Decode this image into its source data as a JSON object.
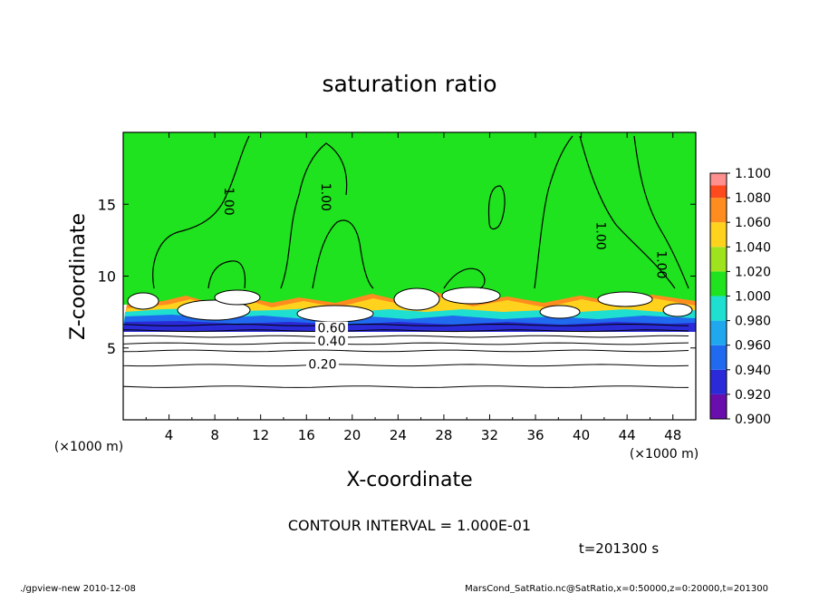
{
  "chart_data": {
    "type": "heatmap",
    "title": "saturation ratio",
    "xlabel": "X-coordinate",
    "ylabel": "Z-coordinate",
    "x_unit": "(×1000 m)",
    "y_unit": "(×1000 m)",
    "xlim": [
      0,
      50
    ],
    "ylim": [
      0,
      20
    ],
    "x_ticks": [
      "4",
      "8",
      "12",
      "16",
      "20",
      "24",
      "28",
      "32",
      "36",
      "40",
      "44",
      "48"
    ],
    "y_ticks": [
      "5",
      "10",
      "15"
    ],
    "colorbar": {
      "levels": [
        "0.900",
        "0.920",
        "0.940",
        "0.960",
        "0.980",
        "1.000",
        "1.020",
        "1.040",
        "1.060",
        "1.080",
        "1.100"
      ],
      "colors": [
        "#6a0dad",
        "#2a2ad8",
        "#1f6aee",
        "#1fa8ee",
        "#1fe0d0",
        "#1ee31e",
        "#9ee31e",
        "#ffd21e",
        "#ff8c1e",
        "#ff4a1e",
        "#ff9090"
      ]
    },
    "contour_labels": [
      {
        "text": "1.00",
        "x": 9.0,
        "z": 15.2
      },
      {
        "text": "1.00",
        "x": 17.5,
        "z": 15.5
      },
      {
        "text": "1.00",
        "x": 41.5,
        "z": 12.8
      },
      {
        "text": "1.00",
        "x": 46.8,
        "z": 10.8
      },
      {
        "text": "0.60",
        "x": 18.2,
        "z": 6.2
      },
      {
        "text": "0.40",
        "x": 18.2,
        "z": 5.3
      },
      {
        "text": "0.20",
        "x": 17.4,
        "z": 3.7
      }
    ],
    "horizontal_contours_z": [
      2.3,
      3.8,
      4.8,
      5.3,
      5.8,
      6.2,
      6.6
    ],
    "contour_interval_label": "CONTOUR INTERVAL = 1.000E-01",
    "time_label": "t=201300 s"
  },
  "footer": {
    "left": "./gpview-new   2010-12-08",
    "right": "MarsCond_SatRatio.nc@SatRatio,x=0:50000,z=0:20000,t=201300"
  }
}
